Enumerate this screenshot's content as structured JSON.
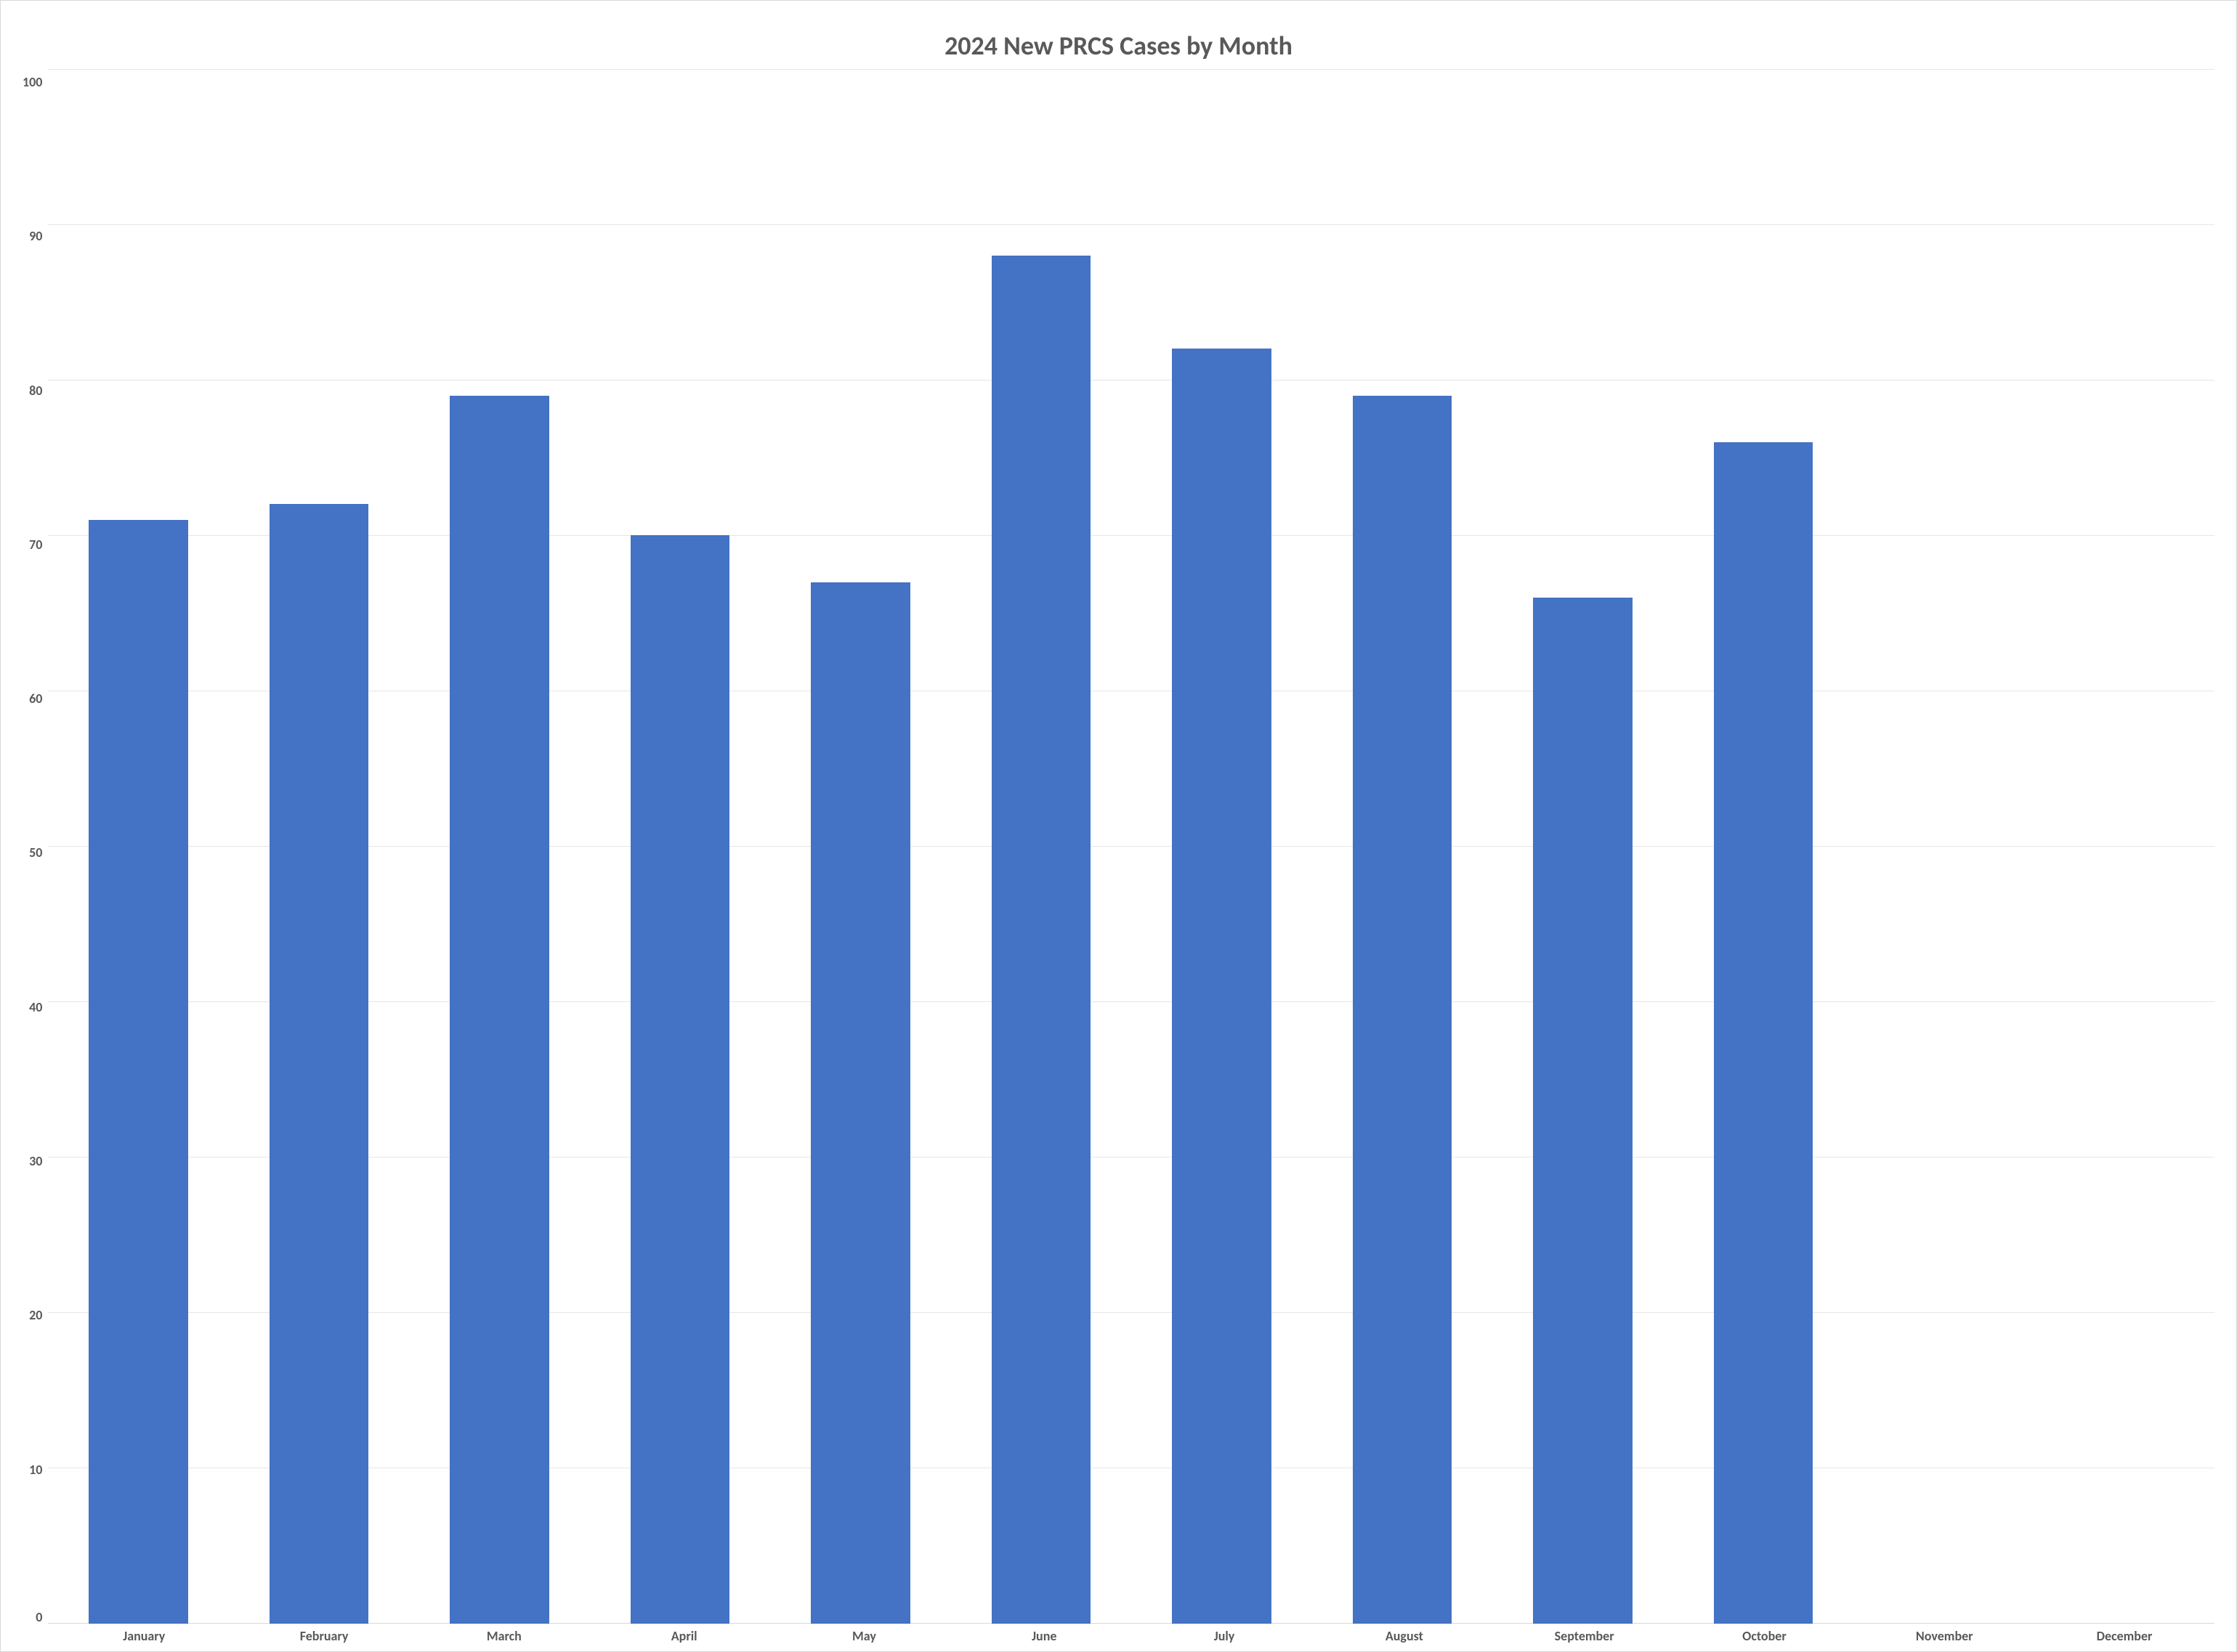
{
  "chart": {
    "type": "bar",
    "title": "2024 New PRCS Cases by Month",
    "title_fontsize": 36,
    "title_color": "#595959",
    "categories": [
      "January",
      "February",
      "March",
      "April",
      "May",
      "June",
      "July",
      "August",
      "September",
      "October",
      "November",
      "December"
    ],
    "values": [
      71,
      72,
      79,
      70,
      67,
      88,
      82,
      79,
      66,
      76,
      0,
      0
    ],
    "bar_color": "#4472c4",
    "bar_width_pct": 55,
    "ylim": [
      0,
      100
    ],
    "ytick_step": 10,
    "yticks": [
      100,
      90,
      80,
      70,
      60,
      50,
      40,
      30,
      20,
      10,
      0
    ],
    "axis_label_fontsize": 18,
    "axis_label_color": "#595959",
    "background_color": "#ffffff",
    "grid_color": "#e6e6e6",
    "baseline_color": "#d9d9d9",
    "border_color": "#d9d9d9"
  }
}
